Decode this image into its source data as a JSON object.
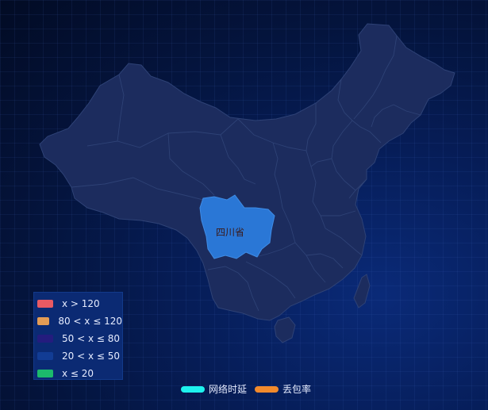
{
  "map": {
    "highlighted_region": "四川省",
    "fill_color": "#1c2c5e",
    "border_color": "#2e4276",
    "highlight_color": "#2a77d6"
  },
  "visual_map": {
    "items": [
      {
        "label": "x > 120",
        "color": "#e85a63"
      },
      {
        "label": "80 < x ≤ 120",
        "color": "#e39c55"
      },
      {
        "label": "50 < x ≤ 80",
        "color": "#241c7e"
      },
      {
        "label": "20 < x ≤ 50",
        "color": "#123c94"
      },
      {
        "label": "x ≤ 20",
        "color": "#1cba6c"
      }
    ]
  },
  "series_legend": {
    "items": [
      {
        "label": "网络时延",
        "color": "#1ef2ee"
      },
      {
        "label": "丢包率",
        "color": "#f28a2c"
      }
    ]
  }
}
